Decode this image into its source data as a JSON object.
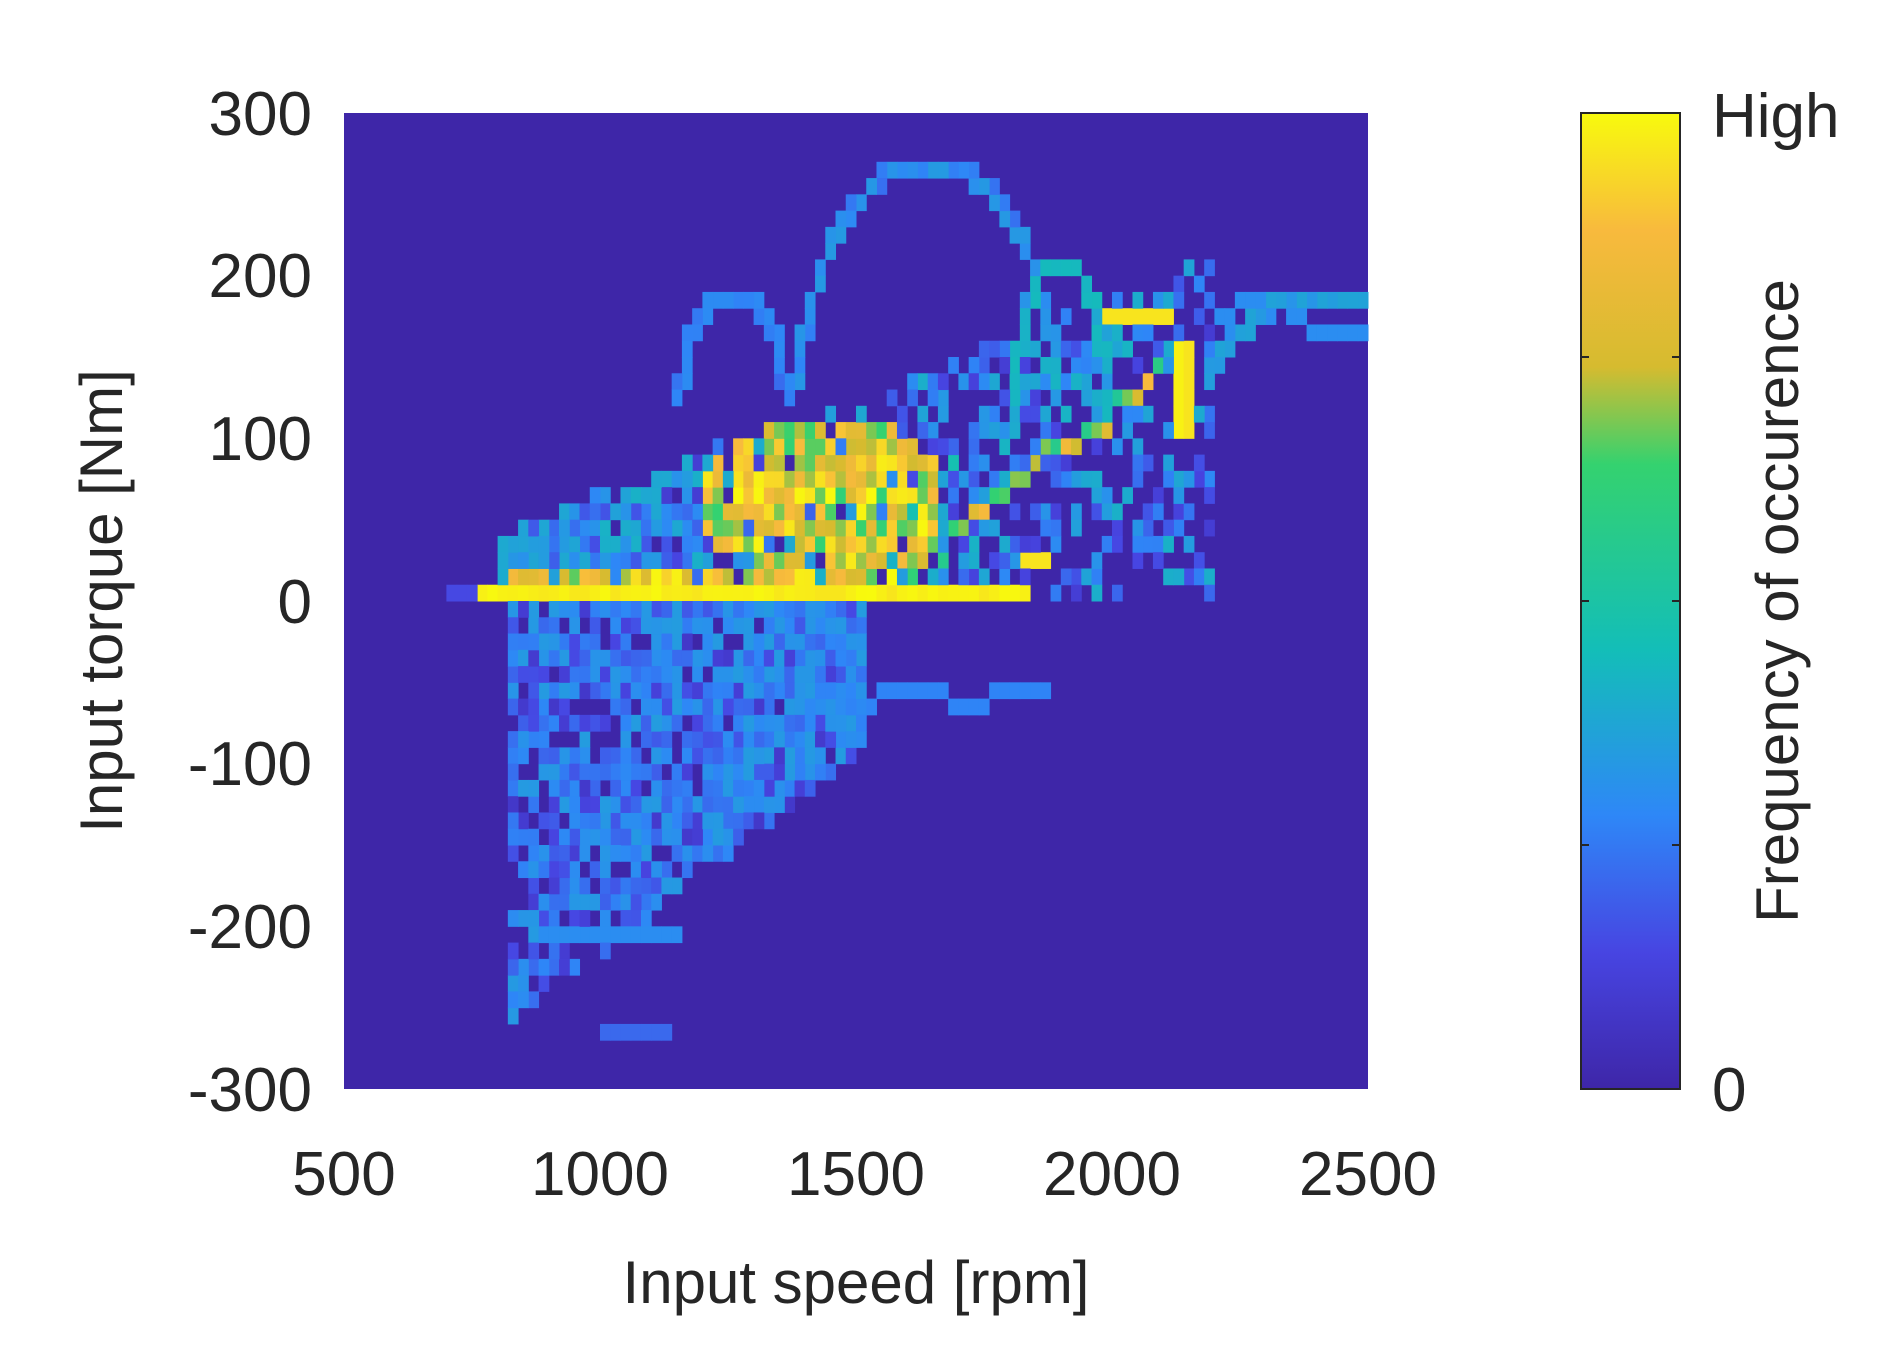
{
  "chart_data": {
    "type": "heatmap",
    "xlabel": "Input speed [rpm]",
    "ylabel": "Input torque [Nm]",
    "xlim": [
      500,
      2500
    ],
    "ylim": [
      -300,
      300
    ],
    "x_ticks": [
      500,
      1000,
      1500,
      2000,
      2500
    ],
    "y_ticks": [
      -300,
      -200,
      -100,
      0,
      100,
      200,
      300
    ],
    "x_tick_labels": [
      "500",
      "1000",
      "1500",
      "2000",
      "2500"
    ],
    "y_tick_labels": [
      "-300",
      "-200",
      "-100",
      "0",
      "100",
      "200",
      "300"
    ],
    "bin_width_rpm": 20,
    "bin_height_nm": 10,
    "colorbar": {
      "label": "Frequency of occurence",
      "max_label": "High",
      "min_label": "0",
      "colors": [
        "#3e26a8",
        "#4745e2",
        "#2e87f7",
        "#13beb8",
        "#34d26f",
        "#d6bb2f",
        "#f8ba3d",
        "#f8fa0d"
      ]
    },
    "background_color": "#3e26a8",
    "grid": false,
    "regions": [
      {
        "name": "zero-torque band",
        "x": [
          760,
          1840
        ],
        "y": [
          0,
          5
        ],
        "intensity": 1.0
      },
      {
        "name": "dense cluster",
        "x": [
          1200,
          1640
        ],
        "y": [
          20,
          100
        ],
        "intensity": 0.9
      },
      {
        "name": "high-load strip",
        "x": [
          2110,
          2170
        ],
        "y": [
          100,
          155
        ],
        "intensity": 0.95
      },
      {
        "name": "upper arc",
        "x": [
          1300,
          1920
        ],
        "y": [
          150,
          270
        ],
        "intensity": 0.3
      },
      {
        "name": "negative torque spread",
        "x": [
          850,
          1500
        ],
        "y": [
          -270,
          0
        ],
        "intensity": 0.3
      }
    ]
  }
}
